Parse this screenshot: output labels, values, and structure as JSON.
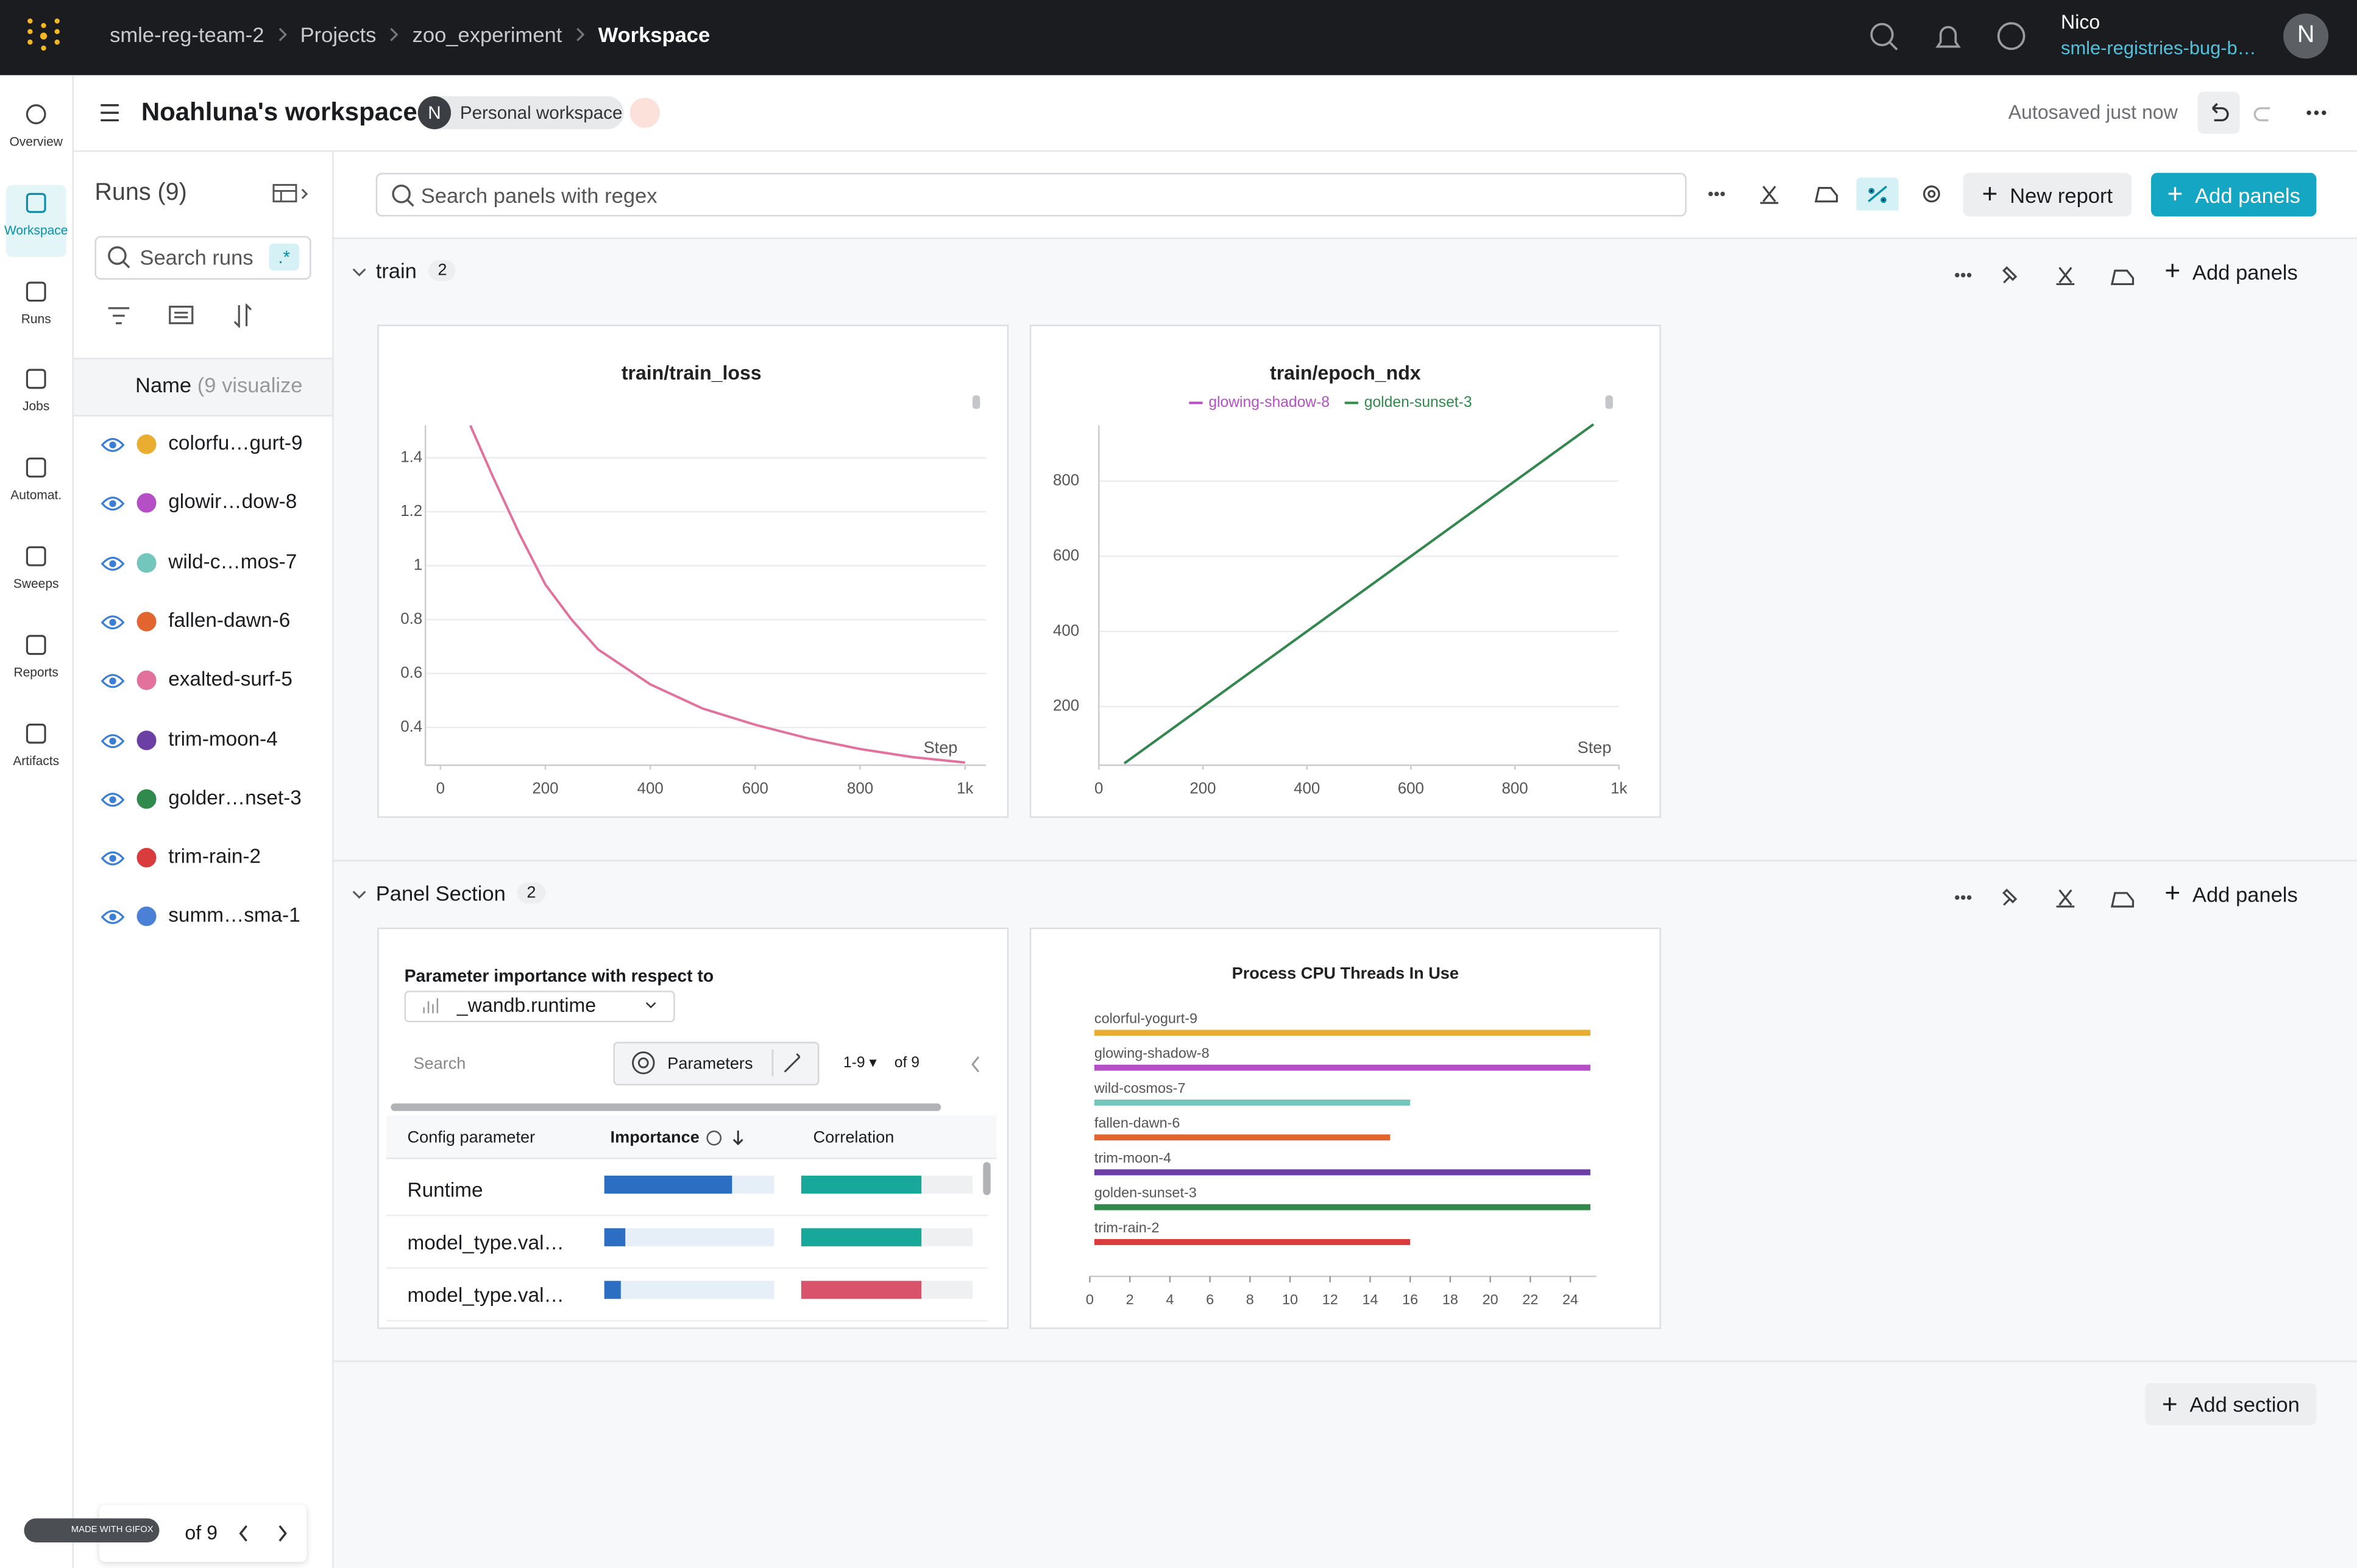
{
  "topbar": {
    "breadcrumb": [
      "smle-reg-team-2",
      "Projects",
      "zoo_experiment",
      "Workspace"
    ],
    "user": "Nico",
    "org": "smle-registries-bug-b…",
    "avatar": "N"
  },
  "nav": [
    "Overview",
    "Workspace",
    "Runs",
    "Jobs",
    "Automat.",
    "Sweeps",
    "Reports",
    "Artifacts"
  ],
  "header": {
    "title": "Noahluna's workspace",
    "owner_initial": "N",
    "badge": "Personal workspace",
    "status": "Autosaved just now"
  },
  "runs_panel": {
    "title": "Runs (9)",
    "search": "Search runs",
    "regex": ".*",
    "column": "Name",
    "column_note": "(9 visualize",
    "runs": [
      {
        "name": "colorfu…gurt-9",
        "color": "#e9ad2f"
      },
      {
        "name": "glowir…dow-8",
        "color": "#b54fc6"
      },
      {
        "name": "wild-c…mos-7",
        "color": "#72c6bb"
      },
      {
        "name": "fallen-dawn-6",
        "color": "#e2652f"
      },
      {
        "name": "exalted-surf-5",
        "color": "#e2719c"
      },
      {
        "name": "trim-moon-4",
        "color": "#6b3fa3"
      },
      {
        "name": "golder…nset-3",
        "color": "#2f8a4b"
      },
      {
        "name": "trim-rain-2",
        "color": "#d83c3c"
      },
      {
        "name": "summ…sma-1",
        "color": "#4a80d6"
      }
    ],
    "pager": "of 9",
    "watermark": "MADE WITH GIFOX"
  },
  "toolbar": {
    "search": "Search panels with regex",
    "new_report": "New report",
    "add_panels": "Add panels"
  },
  "sections": [
    {
      "name": "train",
      "count": 2,
      "add": "Add panels"
    },
    {
      "name": "Panel Section",
      "count": 2,
      "add": "Add panels"
    }
  ],
  "add_section": "Add section",
  "chart_data": [
    {
      "type": "line",
      "title": "train/train_loss",
      "x_label": "Step",
      "x": [
        57,
        100,
        150,
        200,
        250,
        300,
        400,
        500,
        600,
        700,
        800,
        900,
        1000
      ],
      "series": [
        {
          "color": "#e2719c",
          "values": [
            1.52,
            1.33,
            1.12,
            0.93,
            0.8,
            0.69,
            0.56,
            0.47,
            0.41,
            0.36,
            0.32,
            0.29,
            0.27
          ]
        }
      ],
      "xlim": [
        0,
        1000
      ],
      "xticks": [
        0,
        200,
        400,
        600,
        800,
        {
          "value": 1000,
          "label": "1k"
        }
      ],
      "ylim": [
        0.26,
        1.52
      ],
      "yticks": [
        0.4,
        0.6,
        0.8,
        1,
        1.2,
        1.4
      ],
      "grid": true
    },
    {
      "type": "line",
      "title": "train/epoch_ndx",
      "x_label": "Step",
      "x": [
        49,
        951
      ],
      "series": [
        {
          "name": "glowing-shadow-8",
          "color": "#b54fc6",
          "values": [
            49,
            951
          ]
        },
        {
          "name": "golden-sunset-3",
          "color": "#2f8a4b",
          "values": [
            49,
            951
          ]
        }
      ],
      "xlim": [
        0,
        1000
      ],
      "xticks": [
        0,
        200,
        400,
        600,
        800,
        {
          "value": 1000,
          "label": "1k"
        }
      ],
      "ylim": [
        44,
        948
      ],
      "yticks": [
        200,
        400,
        600,
        800
      ],
      "grid": true,
      "legend": "top"
    },
    {
      "type": "hbar",
      "title": "Process CPU Threads In Use",
      "categories": [
        "colorful-yogurt-9",
        "glowing-shadow-8",
        "wild-cosmos-7",
        "fallen-dawn-6",
        "trim-moon-4",
        "golden-sunset-3",
        "trim-rain-2"
      ],
      "values": [
        25,
        25,
        16,
        15,
        25,
        25,
        16
      ],
      "colors": [
        "#e9ad2f",
        "#b54fc6",
        "#72c6bb",
        "#e2652f",
        "#6b3fa3",
        "#2f8a4b",
        "#d83c3c"
      ],
      "xlim": [
        0,
        25.3
      ],
      "xticks": [
        0,
        2,
        4,
        6,
        8,
        10,
        12,
        14,
        16,
        18,
        20,
        22,
        24
      ]
    }
  ],
  "param_importance": {
    "title": "Parameter importance with respect to",
    "metric": "_wandb.runtime",
    "search": "Search",
    "button": "Parameters",
    "range": "1-9 ▾",
    "of": "of 9",
    "columns": [
      "Config parameter",
      "Importance",
      "Correlation"
    ],
    "importance_color": "#2c6ec2",
    "positive_color": "#17a899",
    "negative_color": "#d9536b",
    "rows": [
      {
        "name": "Runtime",
        "importance": 0.75,
        "correlation": 0.7
      },
      {
        "name": "model_type.val…",
        "importance": 0.12,
        "correlation": 0.7
      },
      {
        "name": "model_type.val…",
        "importance": 0.1,
        "correlation": -0.7
      }
    ]
  }
}
